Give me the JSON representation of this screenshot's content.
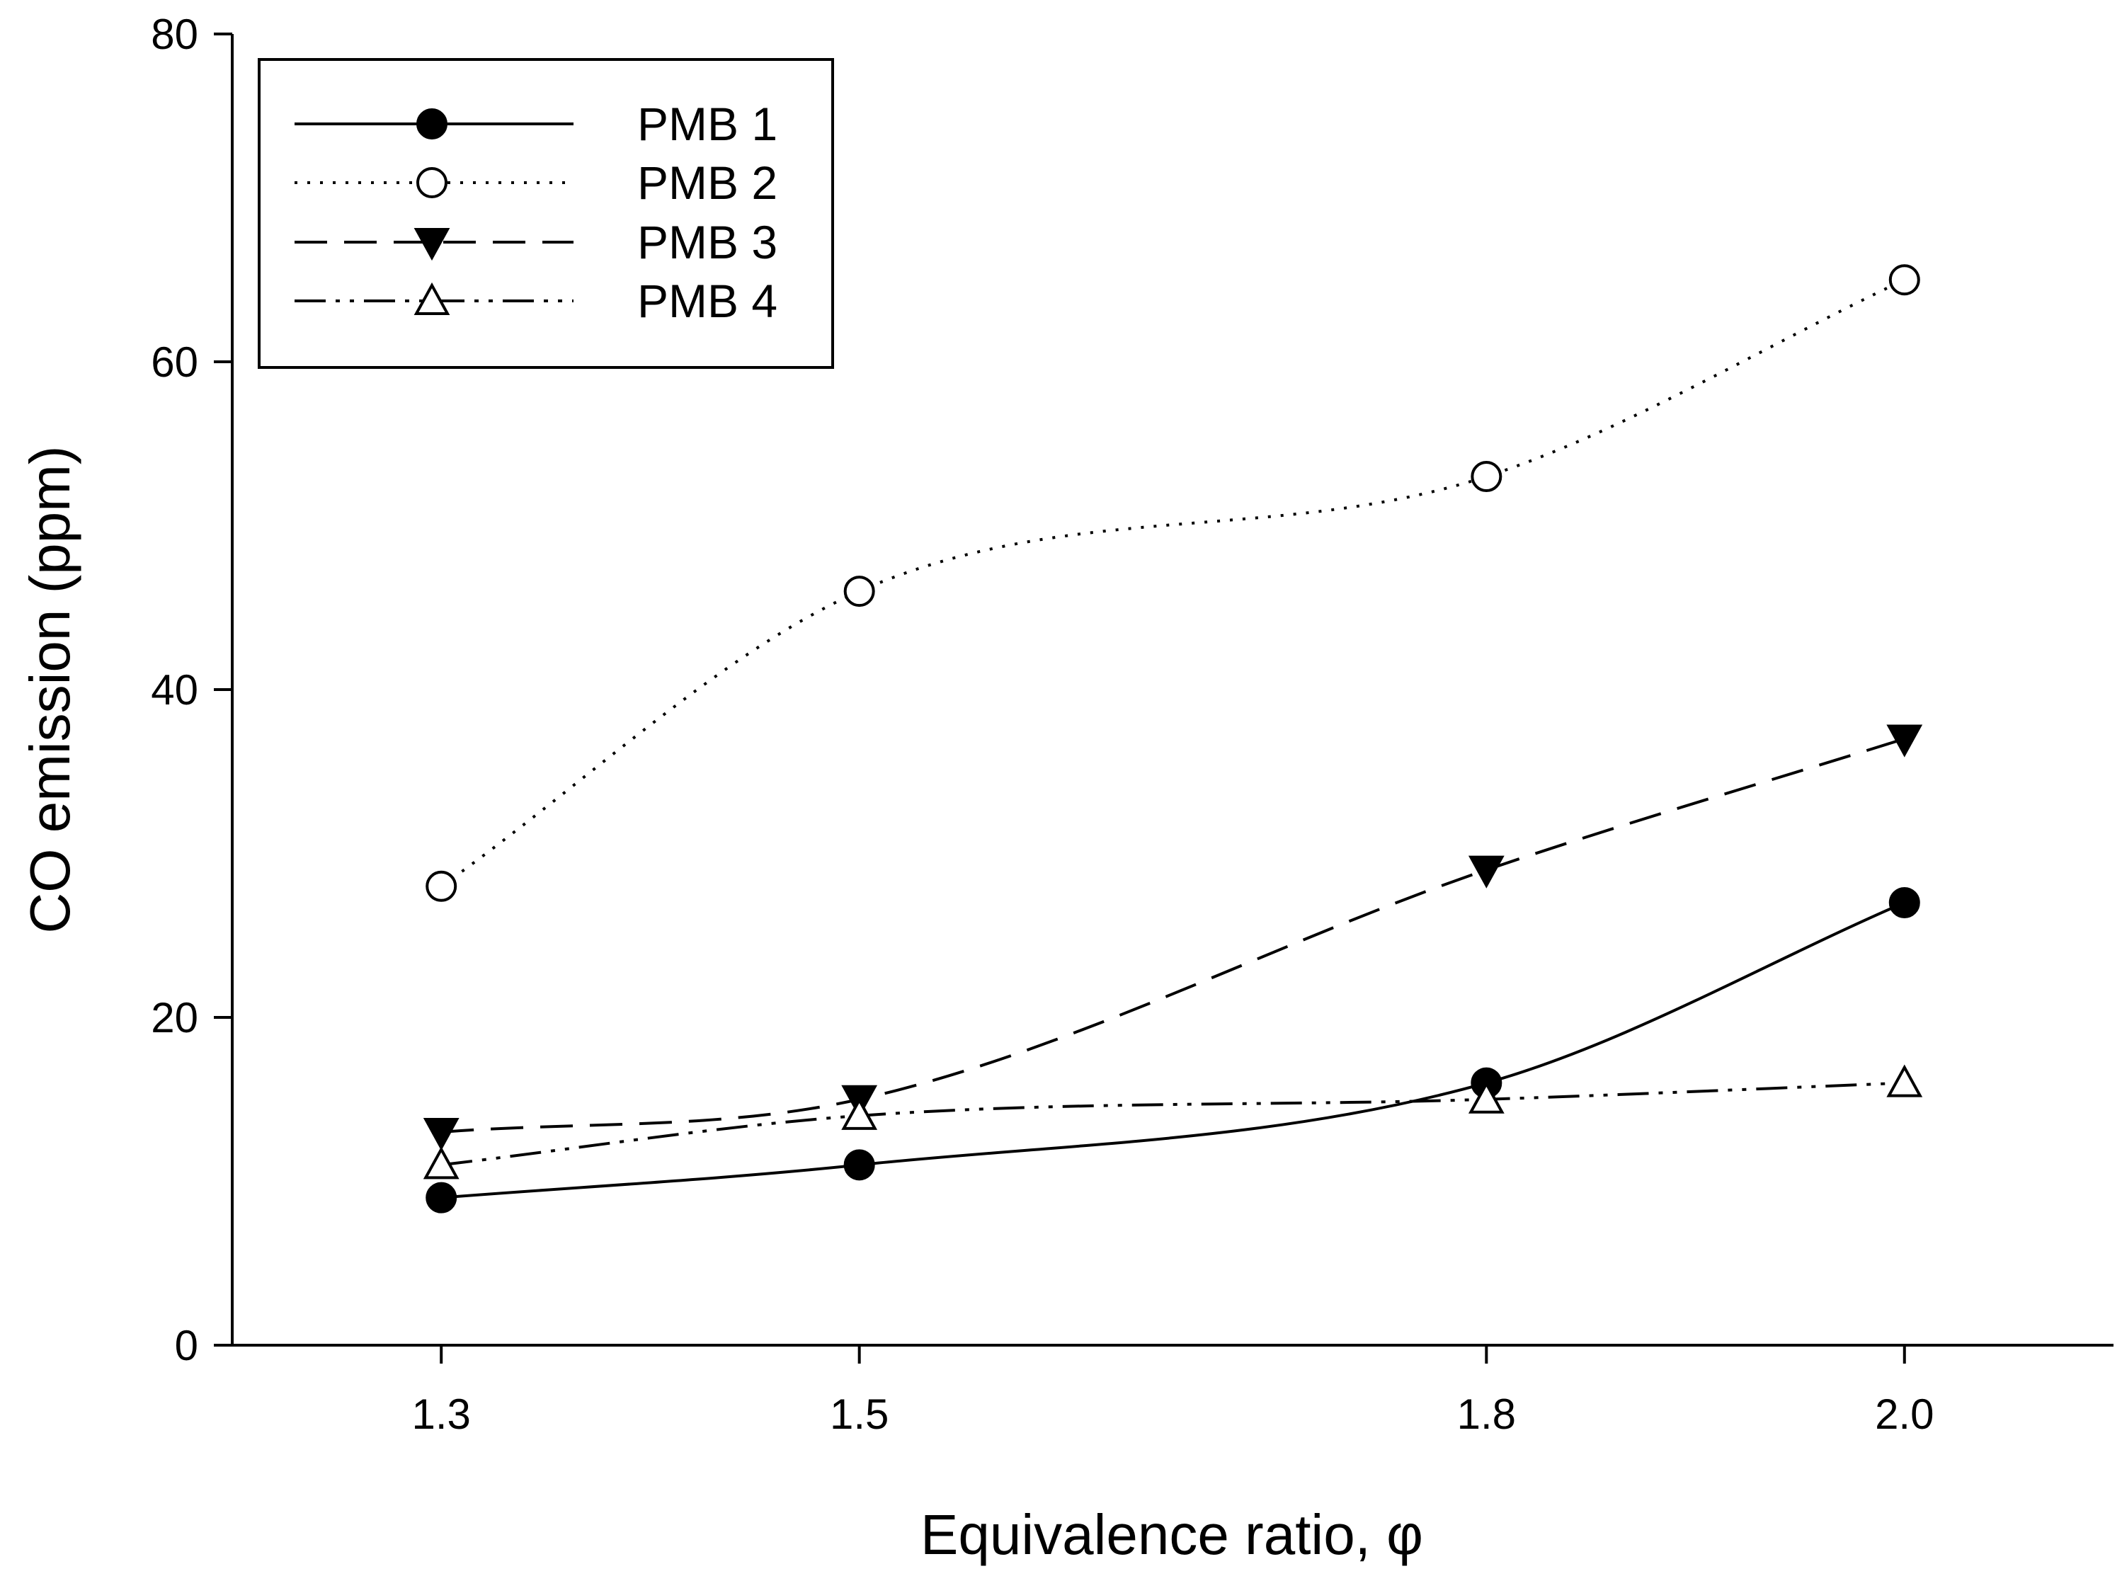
{
  "chart_data": {
    "type": "line",
    "title": "",
    "xlabel": "Equivalence ratio, φ",
    "ylabel": "CO emission (ppm)",
    "x": [
      1.3,
      1.5,
      1.8,
      2.0
    ],
    "x_tick_labels": [
      "1.3",
      "1.5",
      "1.8",
      "2.0"
    ],
    "xlim": [
      1.2,
      2.1
    ],
    "ylim": [
      0,
      80
    ],
    "y_ticks": [
      0,
      20,
      40,
      60,
      80
    ],
    "y_tick_labels": [
      "0",
      "20",
      "40",
      "60",
      "80"
    ],
    "grid": false,
    "legend_position": "top-left",
    "series": [
      {
        "name": "PMB 1",
        "values": [
          9,
          11,
          16,
          27
        ],
        "marker": "filled-circle",
        "line": "solid"
      },
      {
        "name": "PMB 2",
        "values": [
          28,
          46,
          53,
          65
        ],
        "marker": "open-circle",
        "line": "dotted"
      },
      {
        "name": "PMB 3",
        "values": [
          13,
          15,
          29,
          37
        ],
        "marker": "filled-triangle-down",
        "line": "dashed"
      },
      {
        "name": "PMB 4",
        "values": [
          11,
          14,
          15,
          16
        ],
        "marker": "open-triangle-up",
        "line": "dash-dot-dot"
      }
    ]
  }
}
